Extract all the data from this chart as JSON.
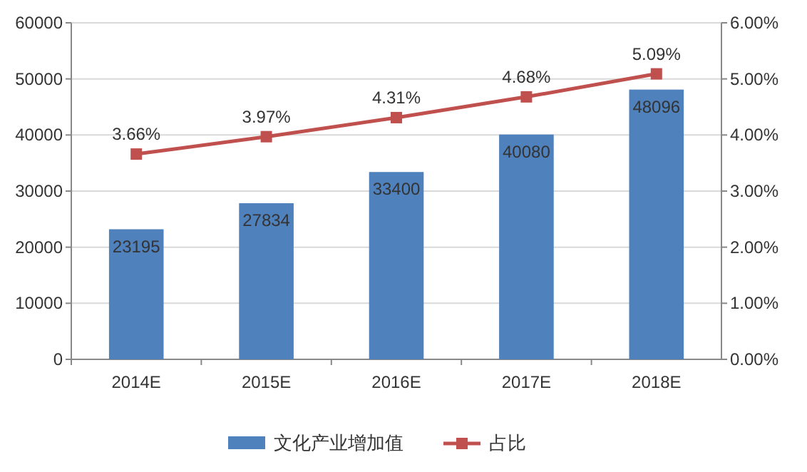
{
  "chart_data": {
    "type": "bar",
    "categories": [
      "2014E",
      "2015E",
      "2016E",
      "2017E",
      "2018E"
    ],
    "series": [
      {
        "name": "文化产业增加值",
        "color": "#4f81bd",
        "values": [
          23195,
          27834,
          33400,
          40080,
          48096
        ],
        "value_labels": [
          "23195",
          "27834",
          "33400",
          "40080",
          "48096"
        ]
      },
      {
        "name": "占比",
        "type": "line",
        "axis": "y2",
        "color": "#c0504d",
        "marker": "square",
        "values": [
          3.66,
          3.97,
          4.31,
          4.68,
          5.09
        ],
        "value_labels": [
          "3.66%",
          "3.97%",
          "4.31%",
          "4.68%",
          "5.09%"
        ]
      }
    ],
    "ylim": [
      0,
      60000
    ],
    "yticks": [
      0,
      10000,
      20000,
      30000,
      40000,
      50000,
      60000
    ],
    "y2lim": [
      0,
      6
    ],
    "y2ticks": [
      {
        "value": 0,
        "label": "0.00%"
      },
      {
        "value": 1,
        "label": "1.00%"
      },
      {
        "value": 2,
        "label": "2.00%"
      },
      {
        "value": 3,
        "label": "3.00%"
      },
      {
        "value": 4,
        "label": "4.00%"
      },
      {
        "value": 5,
        "label": "5.00%"
      },
      {
        "value": 6,
        "label": "6.00%"
      }
    ],
    "grid": "y",
    "legend": "bottom"
  }
}
